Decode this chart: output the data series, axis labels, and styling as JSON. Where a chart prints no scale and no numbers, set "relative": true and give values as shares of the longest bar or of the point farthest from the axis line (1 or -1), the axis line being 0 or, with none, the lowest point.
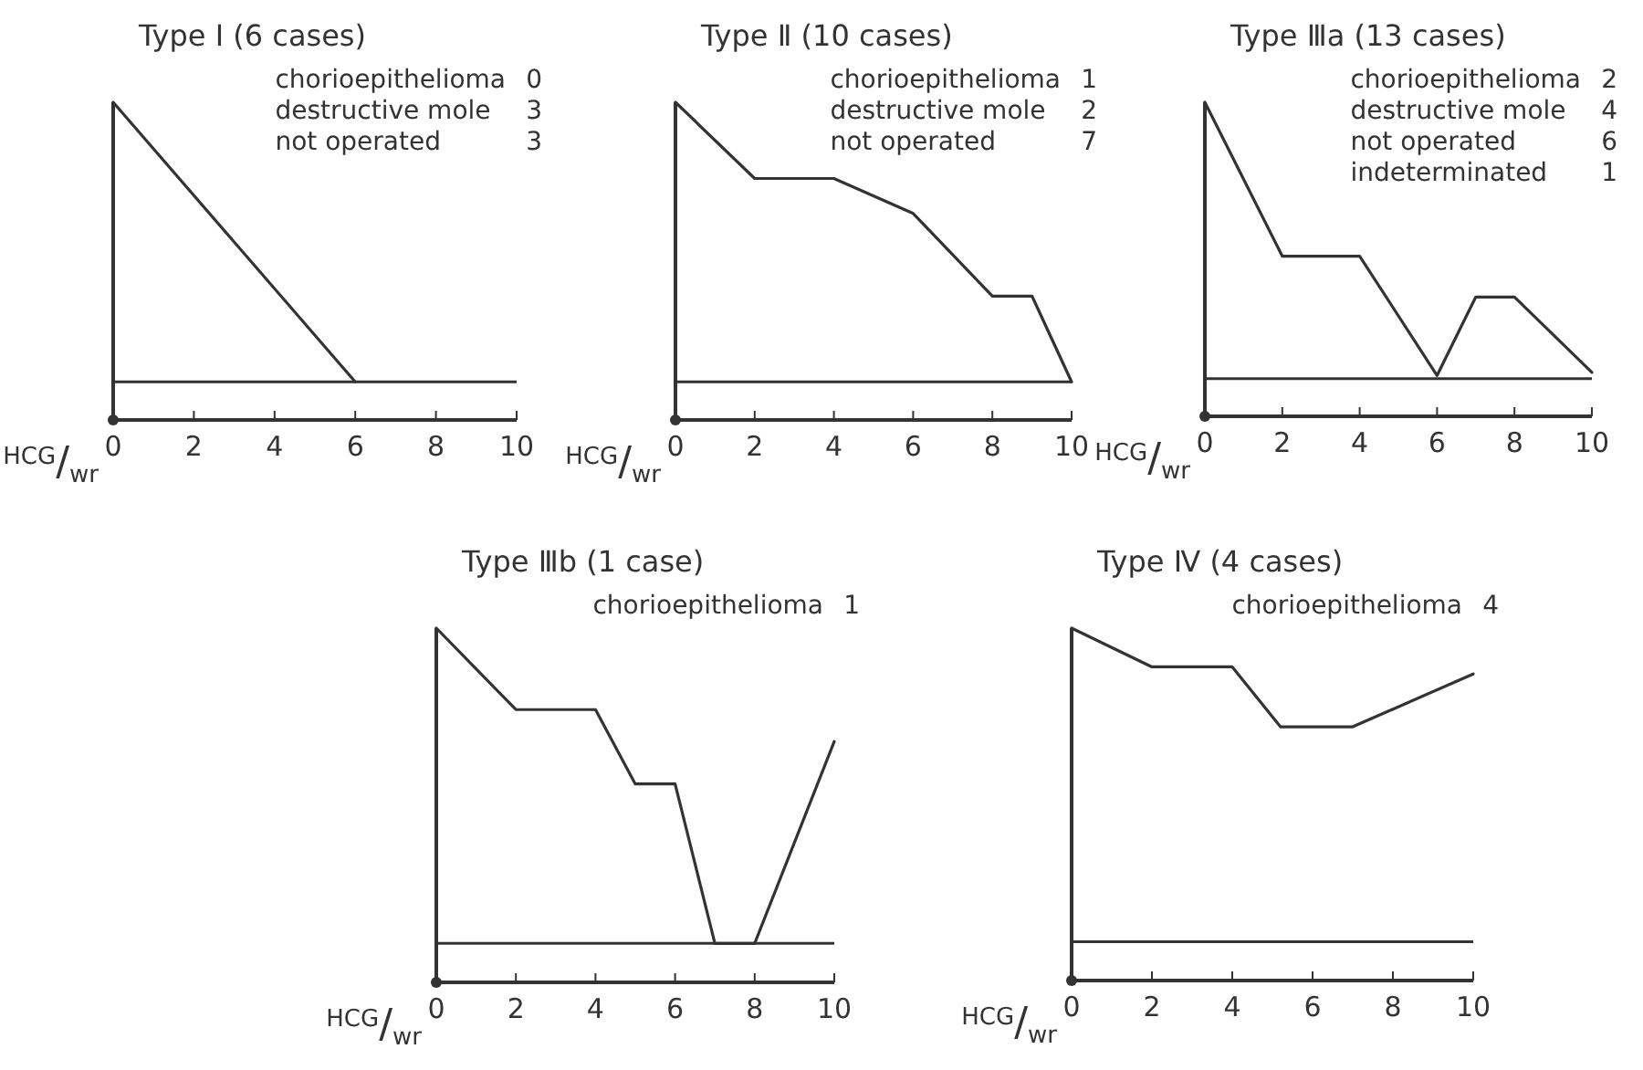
{
  "chart_data": [
    {
      "type": "line",
      "title": "Type Ⅰ (6 cases)",
      "xlabel": "HCG/wr",
      "relative": true,
      "xlim": [
        0,
        10
      ],
      "xticks": [
        0,
        2,
        4,
        6,
        8,
        10
      ],
      "tick_labels": "x",
      "line_style": "solid",
      "annotations": [
        "chorioepithelioma 0",
        "destructive mole 3",
        "not operated 3"
      ],
      "ref_lines": [
        {
          "axis": "y",
          "value": 0.12,
          "label": null
        }
      ],
      "series": [
        {
          "color": "#333333",
          "x": [
            0,
            6
          ],
          "values": [
            1,
            0.12
          ]
        }
      ]
    },
    {
      "type": "line",
      "title": "Type Ⅱ (10 cases)",
      "xlabel": "HCG/wr",
      "relative": true,
      "xlim": [
        0,
        10
      ],
      "xticks": [
        0,
        2,
        4,
        6,
        8,
        10
      ],
      "tick_labels": "x",
      "line_style": "solid",
      "annotations": [
        "chorioepithelioma 1",
        "destructive mole 2",
        "not operated 7"
      ],
      "ref_lines": [
        {
          "axis": "y",
          "value": 0.12,
          "label": null
        }
      ],
      "series": [
        {
          "color": "#333333",
          "x": [
            0,
            2,
            4,
            6,
            8,
            9,
            10
          ],
          "values": [
            1,
            0.76,
            0.76,
            0.65,
            0.39,
            0.39,
            0.12
          ]
        }
      ]
    },
    {
      "type": "line",
      "title": "Type Ⅲa (13 cases)",
      "xlabel": "HCG/wr",
      "relative": true,
      "xlim": [
        0,
        10
      ],
      "xticks": [
        0,
        2,
        4,
        6,
        8,
        10
      ],
      "tick_labels": "x",
      "line_style": "solid",
      "annotations": [
        "chorioepithelioma 2",
        "destructive mole 4",
        "not operated 6",
        "indeterminated 1"
      ],
      "ref_lines": [
        {
          "axis": "y",
          "value": 0.12,
          "label": null
        }
      ],
      "series": [
        {
          "color": "#333333",
          "x": [
            0,
            2,
            4,
            6,
            7,
            8,
            10
          ],
          "values": [
            1,
            0.51,
            0.51,
            0.13,
            0.38,
            0.38,
            0.14
          ]
        }
      ]
    },
    {
      "type": "line",
      "title": "Type Ⅲb (1 case)",
      "xlabel": "HCG/wr",
      "relative": true,
      "xlim": [
        0,
        10
      ],
      "xticks": [
        0,
        2,
        4,
        6,
        8,
        10
      ],
      "tick_labels": "x",
      "line_style": "solid",
      "annotations": [
        "chorioepithelioma 1"
      ],
      "ref_lines": [
        {
          "axis": "y",
          "value": 0.11,
          "label": null
        }
      ],
      "series": [
        {
          "color": "#333333",
          "x": [
            0,
            2,
            4,
            5,
            6,
            7,
            8,
            10
          ],
          "values": [
            1,
            0.77,
            0.77,
            0.56,
            0.56,
            0.11,
            0.11,
            0.68
          ]
        }
      ]
    },
    {
      "type": "line",
      "title": "Type Ⅳ (4 cases)",
      "xlabel": "HCG/wr",
      "relative": true,
      "xlim": [
        0,
        10
      ],
      "xticks": [
        0,
        2,
        4,
        6,
        8,
        10
      ],
      "tick_labels": "x",
      "line_style": "solid",
      "annotations": [
        "chorioepithelioma 4"
      ],
      "ref_lines": [
        {
          "axis": "y",
          "value": 0.11,
          "label": null
        }
      ],
      "series": [
        {
          "color": "#333333",
          "x": [
            0,
            2,
            4,
            5.2,
            7,
            10
          ],
          "values": [
            1,
            0.89,
            0.89,
            0.72,
            0.72,
            0.87
          ]
        }
      ]
    }
  ]
}
